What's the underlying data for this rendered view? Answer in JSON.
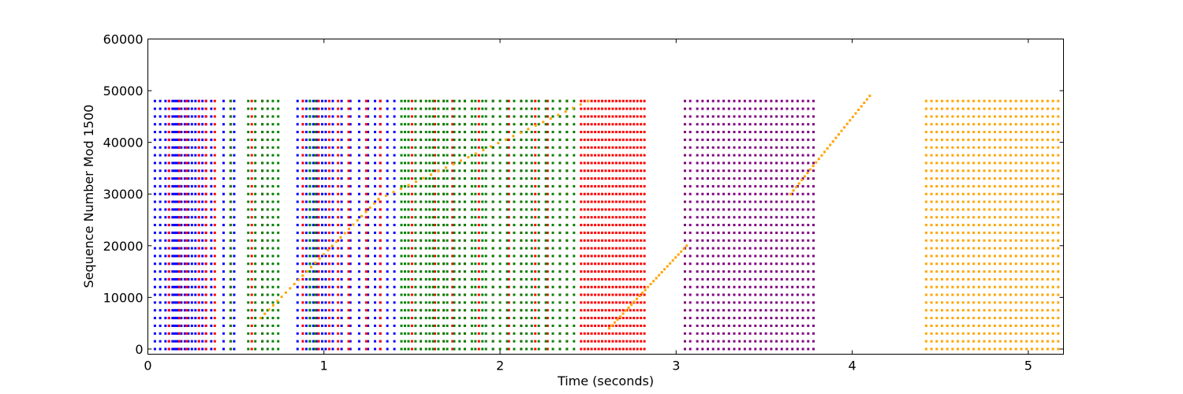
{
  "chart_data": {
    "type": "scatter",
    "title": "",
    "xlabel": "Time (seconds)",
    "ylabel": "Sequence Number Mod 1500",
    "xlim": [
      0,
      5.2
    ],
    "ylim": [
      -1000,
      60000
    ],
    "xticks": [
      "0",
      "1",
      "2",
      "3",
      "4",
      "5"
    ],
    "yticks": [
      "0",
      "10000",
      "20000",
      "30000",
      "40000",
      "50000",
      "60000"
    ],
    "grid": false,
    "legend": "none",
    "colors": {
      "blue": "#0000ff",
      "red": "#ff0000",
      "green": "#008000",
      "purple": "#800080",
      "orange": "#ffa500"
    },
    "series": [
      {
        "color": "blue",
        "description_of_pattern": "vertical columns of points",
        "columns_x": [
          0.04,
          0.07,
          0.1,
          0.12,
          0.14,
          0.15,
          0.16,
          0.17,
          0.18,
          0.19,
          0.21,
          0.23,
          0.25,
          0.27,
          0.29,
          0.31,
          0.33,
          0.36,
          0.43,
          0.49,
          0.85,
          0.88,
          0.9,
          0.92,
          0.94,
          0.96,
          0.99,
          1.01,
          1.05,
          1.1,
          1.15,
          1.2,
          1.25,
          1.29,
          1.32,
          1.36,
          1.4
        ],
        "y_max": 49000
      },
      {
        "color": "red",
        "columns_x": [
          0.12,
          0.18,
          0.22,
          0.29,
          0.33,
          0.38,
          0.47,
          0.59,
          0.65,
          0.88,
          0.97,
          1.03,
          1.08,
          1.14,
          1.24,
          1.32,
          1.5,
          1.55,
          1.63,
          1.68,
          1.73,
          1.8,
          1.88,
          1.96,
          2.05,
          2.12,
          2.2,
          2.27,
          2.34,
          2.38,
          2.46,
          2.48,
          2.5,
          2.52,
          2.54,
          2.56,
          2.58,
          2.6,
          2.62,
          2.64,
          2.66,
          2.68,
          2.7,
          2.72,
          2.74,
          2.76,
          2.78,
          2.8,
          2.82
        ],
        "y_max": 49000
      },
      {
        "color": "green",
        "columns_x": [
          0.47,
          0.57,
          0.61,
          0.65,
          0.68,
          0.71,
          0.74,
          0.92,
          0.95,
          1.44,
          1.46,
          1.48,
          1.52,
          1.55,
          1.58,
          1.6,
          1.62,
          1.65,
          1.68,
          1.7,
          1.74,
          1.77,
          1.8,
          1.84,
          1.86,
          1.9,
          1.92,
          1.96,
          2.0,
          2.04,
          2.08,
          2.12,
          2.15,
          2.18,
          2.22,
          2.26,
          2.3,
          2.34,
          2.38,
          2.42
        ],
        "y_max": 49000
      },
      {
        "color": "purple",
        "columns_x": [
          3.05,
          3.08,
          3.12,
          3.15,
          3.18,
          3.21,
          3.24,
          3.27,
          3.3,
          3.33,
          3.36,
          3.39,
          3.42,
          3.45,
          3.48,
          3.51,
          3.54,
          3.57,
          3.6,
          3.63,
          3.66,
          3.69,
          3.72,
          3.75,
          3.78
        ],
        "y_max": 49000
      },
      {
        "color": "orange",
        "diagonal_segments": [
          {
            "x": [
              0.64,
              1.31
            ],
            "y": [
              6000,
              29000
            ]
          },
          {
            "x": [
              1.31,
              2.5
            ],
            "y": [
              29000,
              48000
            ]
          },
          {
            "x": [
              2.62,
              3.06
            ],
            "y": [
              4000,
              20000
            ]
          },
          {
            "x": [
              3.65,
              4.1
            ],
            "y": [
              30000,
              49000
            ]
          }
        ],
        "columns_x": [
          4.42,
          4.45,
          4.48,
          4.51,
          4.54,
          4.57,
          4.6,
          4.63,
          4.66,
          4.69,
          4.72,
          4.75,
          4.78,
          4.81,
          4.84,
          4.87,
          4.9,
          4.93,
          4.96,
          4.99,
          5.02,
          5.05,
          5.08,
          5.11,
          5.14,
          5.17
        ],
        "y_max": 49000
      }
    ]
  }
}
